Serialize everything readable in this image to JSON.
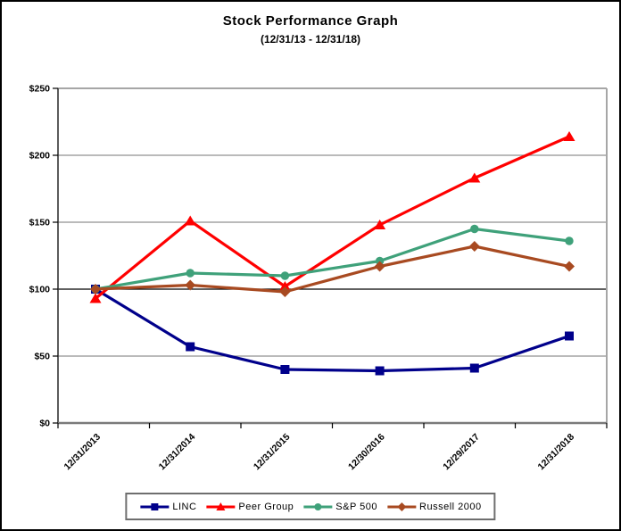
{
  "title": "Stock Performance Graph",
  "subtitle": "(12/31/13 - 12/31/18)",
  "chart_data": {
    "type": "line",
    "title": "Stock Performance Graph",
    "subtitle": "(12/31/13 - 12/31/18)",
    "x_categories": [
      "12/31/2013",
      "12/31/2014",
      "12/31/2015",
      "12/30/2016",
      "12/29/2017",
      "12/31/2018"
    ],
    "y_ticks": {
      "values": [
        0,
        50,
        100,
        150,
        200,
        250
      ],
      "labels": [
        "$0",
        "$50",
        "$100",
        "$150",
        "$200",
        "$250"
      ]
    },
    "ylim": [
      0,
      250
    ],
    "grid": "horizontal",
    "legend_position": "bottom",
    "series": [
      {
        "name": "LINC",
        "color": "#00008B",
        "marker": "square",
        "values": [
          100,
          57,
          40,
          39,
          41,
          65
        ]
      },
      {
        "name": "Peer Group",
        "color": "#FF0000",
        "marker": "triangle",
        "values": [
          93,
          151,
          102,
          148,
          183,
          214
        ]
      },
      {
        "name": "S&P 500",
        "color": "#3FA17A",
        "marker": "circle",
        "values": [
          100,
          112,
          110,
          121,
          145,
          136
        ]
      },
      {
        "name": "Russell 2000",
        "color": "#A84A21",
        "marker": "diamond",
        "values": [
          100,
          103,
          98,
          117,
          132,
          117
        ]
      }
    ],
    "colors": {
      "gridline": "#909090",
      "hundred_line": "#000000",
      "plot_border": "#a6a6a6",
      "axis": "#333333",
      "tick": "#000000",
      "label": "#000000"
    }
  }
}
